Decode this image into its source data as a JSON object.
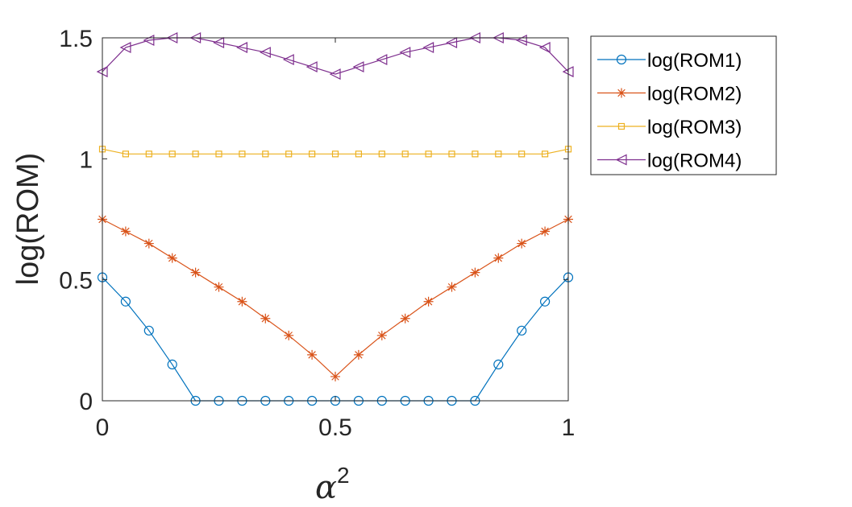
{
  "chart_data": {
    "type": "line",
    "xlabel": "α",
    "xlabel_superscript": "2",
    "ylabel": "log(ROM)",
    "xlim": [
      0,
      1
    ],
    "ylim": [
      0,
      1.5
    ],
    "xticks": [
      "0",
      "0.5",
      "1"
    ],
    "yticks": [
      "0",
      "0.5",
      "1",
      "1.5"
    ],
    "grid": false,
    "legend_position": "outside-top-right",
    "x": [
      0,
      0.05,
      0.1,
      0.15,
      0.2,
      0.25,
      0.3,
      0.35,
      0.4,
      0.45,
      0.5,
      0.55,
      0.6,
      0.65,
      0.7,
      0.75,
      0.8,
      0.85,
      0.9,
      0.95,
      1
    ],
    "series": [
      {
        "name": "log(ROM1)",
        "color": "#0072BD",
        "marker": "circle",
        "values": [
          0.51,
          0.41,
          0.29,
          0.15,
          0,
          0,
          0,
          0,
          0,
          0,
          0,
          0,
          0,
          0,
          0,
          0,
          0,
          0.15,
          0.29,
          0.41,
          0.51
        ]
      },
      {
        "name": "log(ROM2)",
        "color": "#D95319",
        "marker": "asterisk",
        "values": [
          0.75,
          0.7,
          0.65,
          0.59,
          0.53,
          0.47,
          0.41,
          0.34,
          0.27,
          0.19,
          0.1,
          0.19,
          0.27,
          0.34,
          0.41,
          0.47,
          0.53,
          0.59,
          0.65,
          0.7,
          0.75
        ]
      },
      {
        "name": "log(ROM3)",
        "color": "#EDB120",
        "marker": "square",
        "values": [
          1.04,
          1.02,
          1.02,
          1.02,
          1.02,
          1.02,
          1.02,
          1.02,
          1.02,
          1.02,
          1.02,
          1.02,
          1.02,
          1.02,
          1.02,
          1.02,
          1.02,
          1.02,
          1.02,
          1.02,
          1.04
        ]
      },
      {
        "name": "log(ROM4)",
        "color": "#7E2F8E",
        "marker": "triangle-left",
        "values": [
          1.36,
          1.46,
          1.49,
          1.5,
          1.5,
          1.48,
          1.46,
          1.44,
          1.41,
          1.38,
          1.35,
          1.38,
          1.41,
          1.44,
          1.46,
          1.48,
          1.5,
          1.5,
          1.49,
          1.46,
          1.36
        ]
      }
    ]
  }
}
